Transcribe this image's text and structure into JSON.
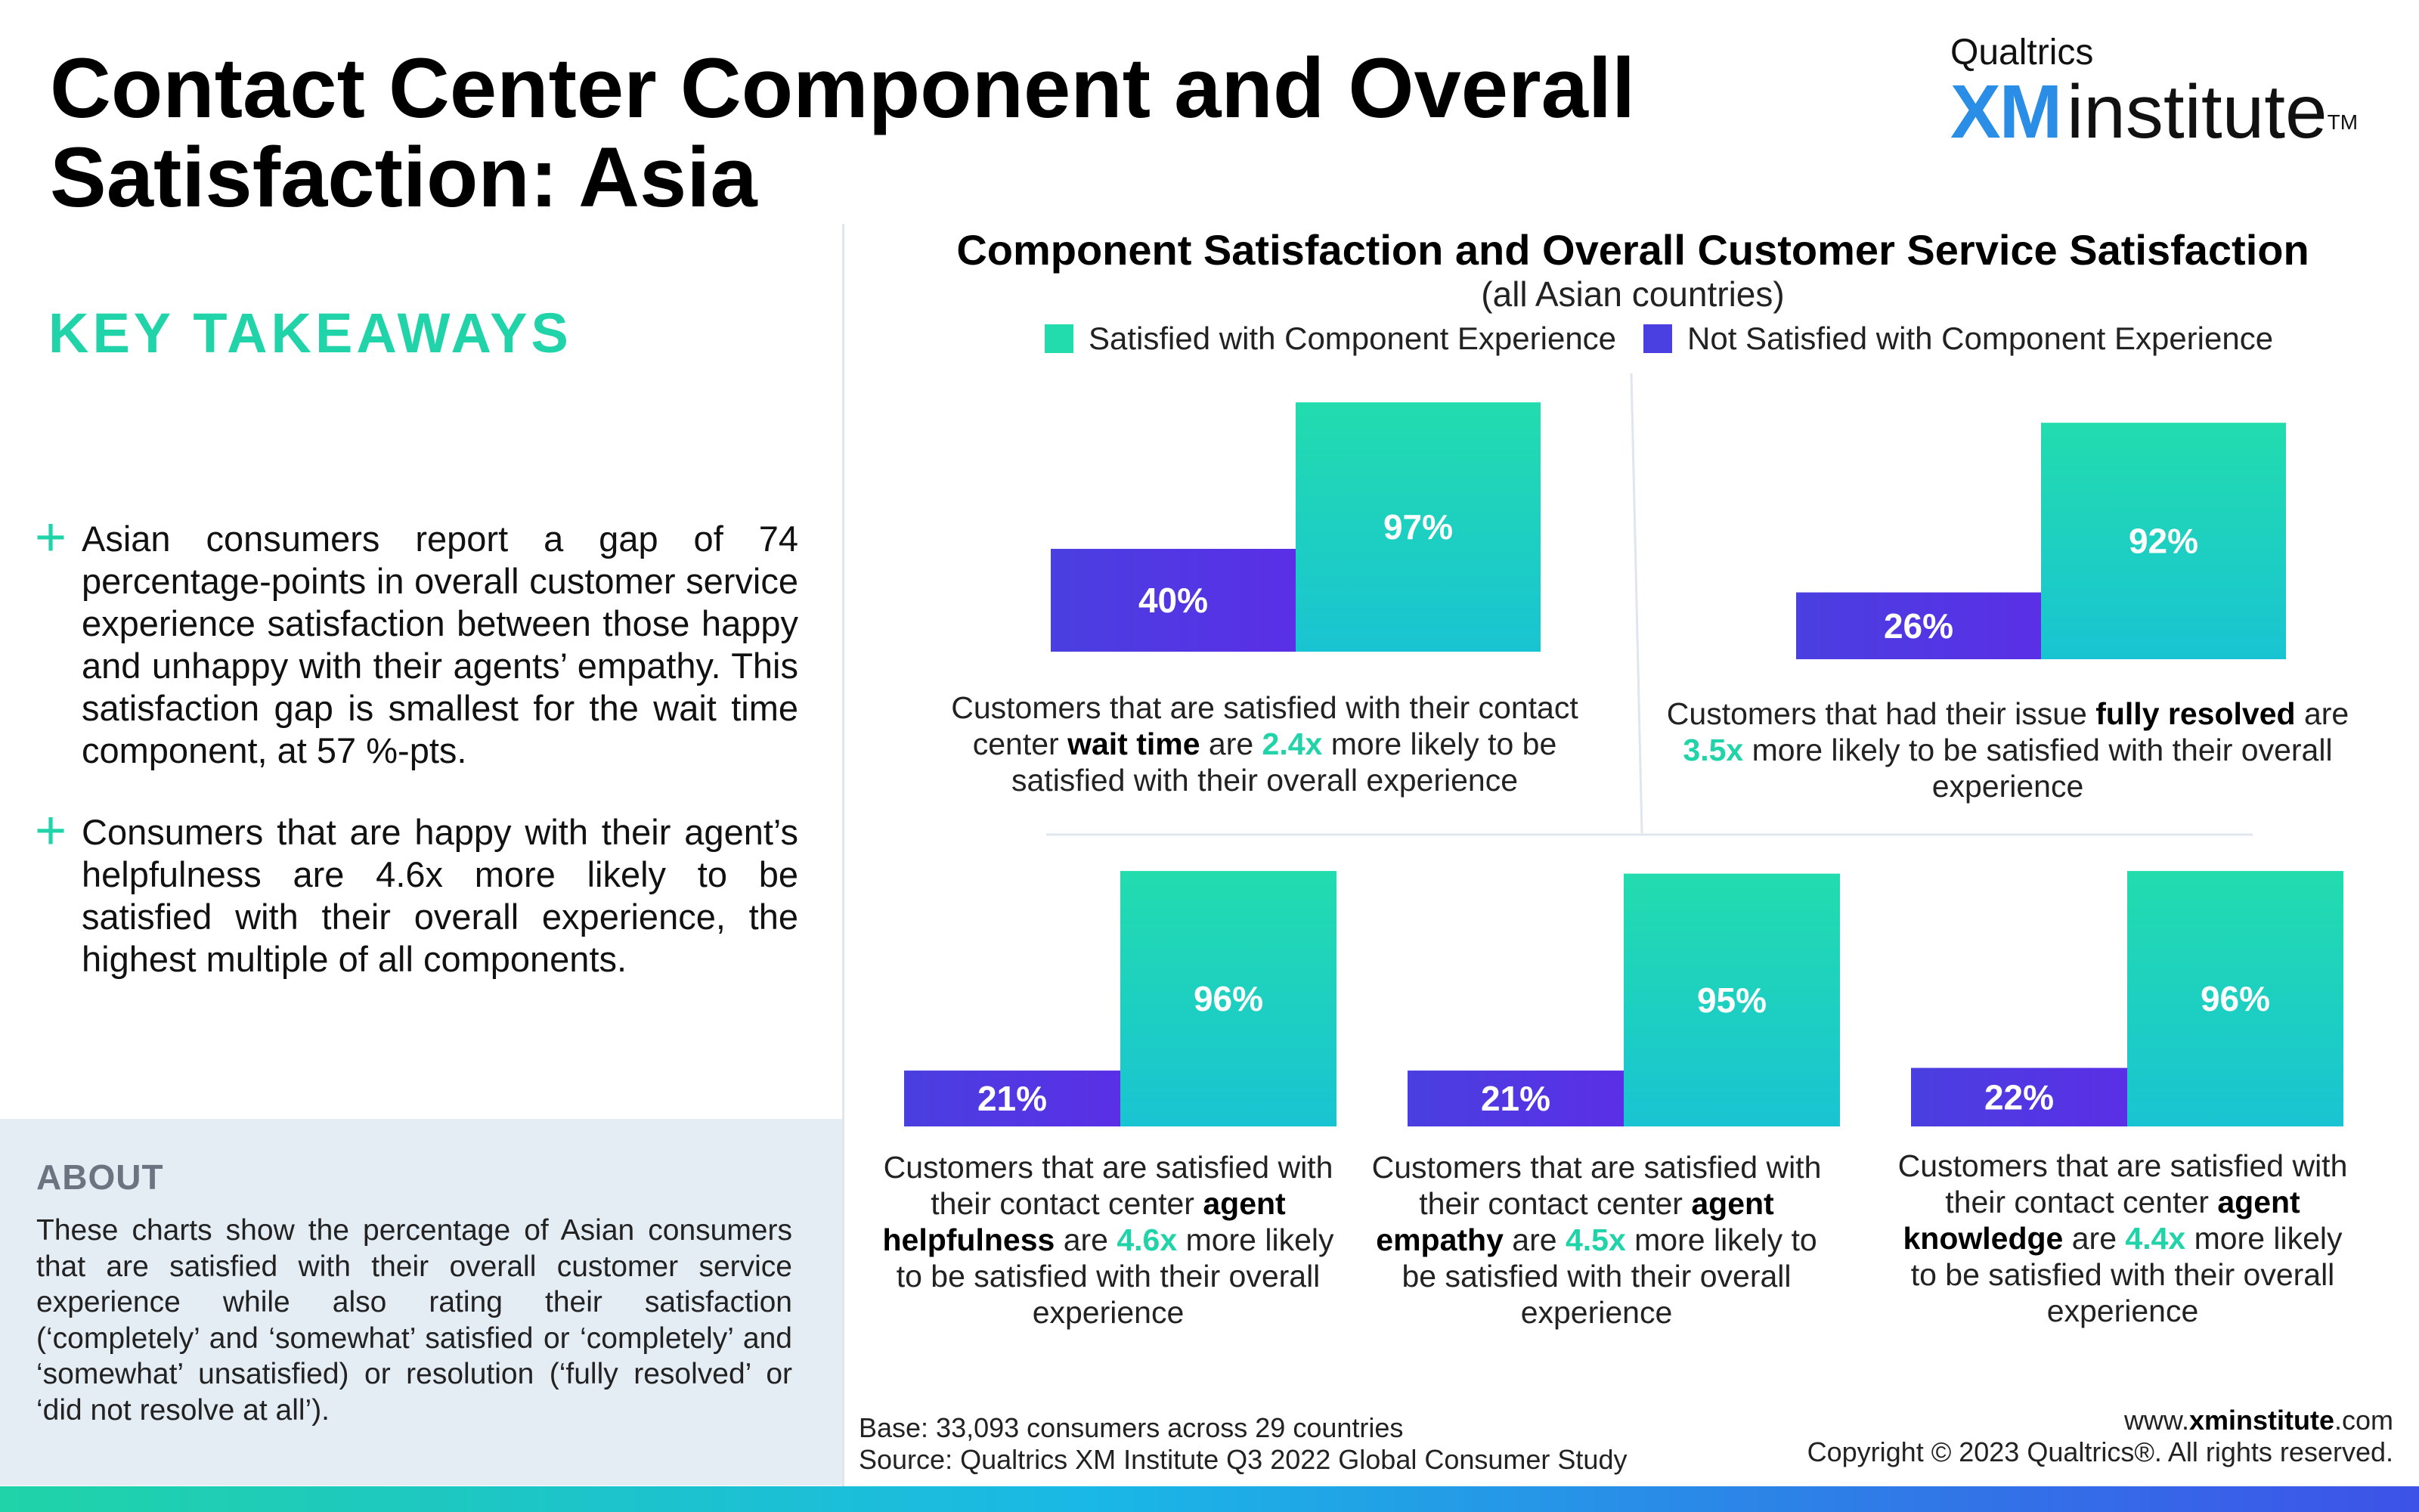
{
  "page": {
    "title": "Contact Center Component and Overall Satisfaction: Asia",
    "logo_brand": "Qualtrics",
    "logo_xm": "XM",
    "logo_institute": "institute",
    "logo_tm": "TM"
  },
  "takeaways": {
    "heading": "KEY TAKEAWAYS",
    "bullets": [
      "Asian consumers report a gap of 74 percentage-points in overall customer service experience satisfaction between those happy and unhappy with their agents’ empathy. This satisfaction gap is smallest for the wait time component, at 57 %-pts.",
      "Consumers that are happy with their agent’s helpfulness are 4.6x more likely to be satisfied with their overall experience, the highest multiple of all components."
    ],
    "bullet_symbol": "+"
  },
  "about": {
    "heading": "ABOUT",
    "text": "These charts show the percentage of Asian consumers that are satisfied with their overall customer service experience while also rating their satisfaction (‘completely’ and ‘somewhat’ satisfied or ‘completely’ and ‘somewhat’ unsatisfied) or resolution (‘fully resolved’ or ‘did not resolve at all’)."
  },
  "chart_data": {
    "type": "bar",
    "title": "Component Satisfaction and Overall Customer Service Satisfaction",
    "subtitle": "(all Asian countries)",
    "series_names": [
      "Satisfied with Component Experience",
      "Not Satisfied with Component Experience"
    ],
    "colors": {
      "satisfied_top": "#22dcae",
      "satisfied_bottom": "#19c4d2",
      "not_satisfied_left": "#4a3fe0",
      "not_satisfied_right": "#5a2fe6",
      "multiple": "#20d3a8"
    },
    "panels": [
      {
        "component": "wait time",
        "satisfied": 97,
        "not_satisfied": 40,
        "satisfied_label": "97%",
        "not_satisfied_label": "40%",
        "caption_pre": "Customers that are satisfied with their contact center ",
        "caption_bold": "wait time",
        "caption_mid": " are ",
        "multiple": "2.4x",
        "caption_post": " more likely to be satisfied with their overall experience"
      },
      {
        "component": "fully resolved",
        "satisfied": 92,
        "not_satisfied": 26,
        "satisfied_label": "92%",
        "not_satisfied_label": "26%",
        "caption_pre": "Customers that had their issue ",
        "caption_bold": "fully resolved",
        "caption_mid": " are ",
        "multiple": "3.5x",
        "caption_post": " more likely to be satisfied with their overall experience"
      },
      {
        "component": "agent helpfulness",
        "satisfied": 96,
        "not_satisfied": 21,
        "satisfied_label": "96%",
        "not_satisfied_label": "21%",
        "caption_pre": "Customers that are satisfied with their contact center ",
        "caption_bold": "agent helpfulness",
        "caption_mid": " are ",
        "multiple": "4.6x",
        "caption_post": " more likely to be satisfied with their overall experience"
      },
      {
        "component": "agent empathy",
        "satisfied": 95,
        "not_satisfied": 21,
        "satisfied_label": "95%",
        "not_satisfied_label": "21%",
        "caption_pre": "Customers that are satisfied with their contact center ",
        "caption_bold": "agent empathy",
        "caption_mid": " are ",
        "multiple": "4.5x",
        "caption_post": " more likely to be satisfied with their overall experience"
      },
      {
        "component": "agent knowledge",
        "satisfied": 96,
        "not_satisfied": 22,
        "satisfied_label": "96%",
        "not_satisfied_label": "22%",
        "caption_pre": "Customers that are satisfied with their contact center ",
        "caption_bold": "agent knowledge",
        "caption_mid": " are ",
        "multiple": "4.4x",
        "caption_post": " more likely to be satisfied with their overall experience"
      }
    ]
  },
  "footer": {
    "base": "Base: 33,093 consumers across 29 countries",
    "source": "Source: Qualtrics XM Institute Q3 2022 Global Consumer Study",
    "url_pre": "www.",
    "url_bold": "xminstitute",
    "url_post": ".com",
    "copyright": "Copyright © 2023 Qualtrics®. All rights reserved."
  }
}
